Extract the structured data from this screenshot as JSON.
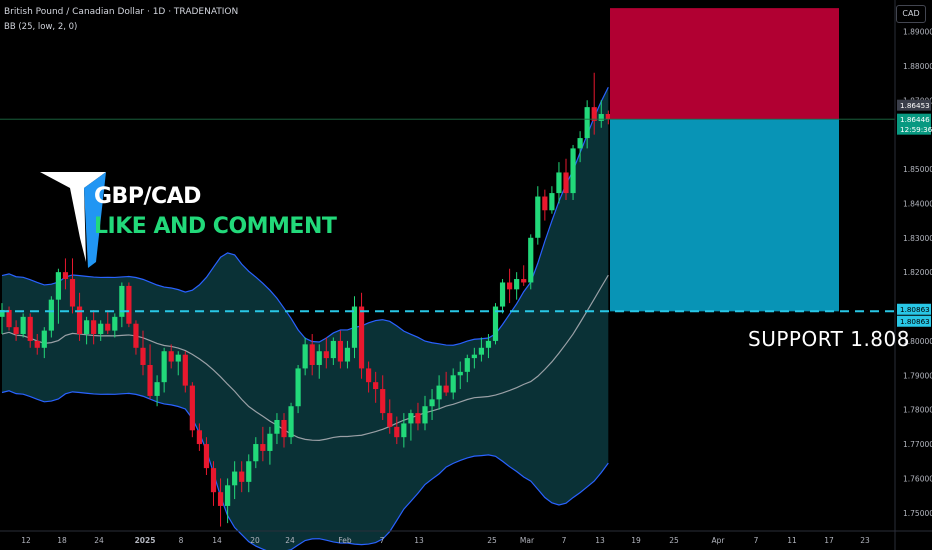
{
  "header": {
    "symbol_title": "British Pound / Canadian Dollar · 1D · TRADENATION",
    "indicator": "BB (25, low, 2, 0)",
    "currency_button": "CAD"
  },
  "annotations": {
    "headline_1": "GBP/CAD",
    "headline_2": "LIKE AND COMMENT",
    "support_label": "SUPPORT  1.808"
  },
  "price_tags": {
    "last_price": "1.86453",
    "bid_price": "1.86446",
    "countdown": "12:59:36",
    "support_upper": "1.80863",
    "support_lower": "1.80863"
  },
  "colors": {
    "up": "#089981",
    "down": "#f23645",
    "candle_up": "#22d97a",
    "candle_down": "#e8182e",
    "band_line": "#2962ff",
    "band_fill": "#0c3a40",
    "basis_line": "#9aa0a6",
    "stop_zone": "#b10032",
    "target_zone": "#0894b6",
    "support_line": "#29c7e6"
  },
  "chart_data": {
    "type": "candlestick",
    "y_axis": {
      "min": 1.745,
      "max": 1.898,
      "ticks": [
        "1.89000",
        "1.88000",
        "1.87000",
        "1.85000",
        "1.84000",
        "1.83000",
        "1.82000",
        "1.80000",
        "1.79000",
        "1.78000",
        "1.77000",
        "1.76000",
        "1.75000"
      ]
    },
    "x_axis_labels": [
      "12",
      "18",
      "24",
      "2025",
      "8",
      "14",
      "20",
      "24",
      "Feb",
      "7",
      "13",
      "25",
      "Mar",
      "7",
      "13",
      "19",
      "25",
      "Apr",
      "7",
      "11",
      "17",
      "23"
    ],
    "candles": [
      {
        "o": 1.807,
        "h": 1.811,
        "l": 1.802,
        "c": 1.809
      },
      {
        "o": 1.809,
        "h": 1.81,
        "l": 1.803,
        "c": 1.804
      },
      {
        "o": 1.804,
        "h": 1.806,
        "l": 1.8,
        "c": 1.802
      },
      {
        "o": 1.802,
        "h": 1.808,
        "l": 1.801,
        "c": 1.807
      },
      {
        "o": 1.807,
        "h": 1.808,
        "l": 1.798,
        "c": 1.8
      },
      {
        "o": 1.8,
        "h": 1.802,
        "l": 1.796,
        "c": 1.798
      },
      {
        "o": 1.798,
        "h": 1.804,
        "l": 1.795,
        "c": 1.803
      },
      {
        "o": 1.803,
        "h": 1.813,
        "l": 1.801,
        "c": 1.812
      },
      {
        "o": 1.812,
        "h": 1.821,
        "l": 1.805,
        "c": 1.82
      },
      {
        "o": 1.82,
        "h": 1.824,
        "l": 1.815,
        "c": 1.818
      },
      {
        "o": 1.818,
        "h": 1.824,
        "l": 1.808,
        "c": 1.81
      },
      {
        "o": 1.81,
        "h": 1.814,
        "l": 1.8,
        "c": 1.802
      },
      {
        "o": 1.802,
        "h": 1.807,
        "l": 1.799,
        "c": 1.806
      },
      {
        "o": 1.806,
        "h": 1.809,
        "l": 1.799,
        "c": 1.802
      },
      {
        "o": 1.802,
        "h": 1.806,
        "l": 1.8,
        "c": 1.805
      },
      {
        "o": 1.805,
        "h": 1.809,
        "l": 1.802,
        "c": 1.803
      },
      {
        "o": 1.803,
        "h": 1.808,
        "l": 1.801,
        "c": 1.807
      },
      {
        "o": 1.807,
        "h": 1.817,
        "l": 1.804,
        "c": 1.816
      },
      {
        "o": 1.816,
        "h": 1.817,
        "l": 1.804,
        "c": 1.805
      },
      {
        "o": 1.805,
        "h": 1.806,
        "l": 1.796,
        "c": 1.798
      },
      {
        "o": 1.798,
        "h": 1.803,
        "l": 1.79,
        "c": 1.793
      },
      {
        "o": 1.793,
        "h": 1.799,
        "l": 1.783,
        "c": 1.784
      },
      {
        "o": 1.784,
        "h": 1.79,
        "l": 1.781,
        "c": 1.788
      },
      {
        "o": 1.788,
        "h": 1.798,
        "l": 1.785,
        "c": 1.797
      },
      {
        "o": 1.797,
        "h": 1.799,
        "l": 1.792,
        "c": 1.794
      },
      {
        "o": 1.794,
        "h": 1.797,
        "l": 1.79,
        "c": 1.796
      },
      {
        "o": 1.796,
        "h": 1.797,
        "l": 1.785,
        "c": 1.787
      },
      {
        "o": 1.787,
        "h": 1.788,
        "l": 1.772,
        "c": 1.774
      },
      {
        "o": 1.774,
        "h": 1.776,
        "l": 1.768,
        "c": 1.77
      },
      {
        "o": 1.77,
        "h": 1.772,
        "l": 1.761,
        "c": 1.763
      },
      {
        "o": 1.763,
        "h": 1.765,
        "l": 1.752,
        "c": 1.756
      },
      {
        "o": 1.756,
        "h": 1.76,
        "l": 1.746,
        "c": 1.752
      },
      {
        "o": 1.752,
        "h": 1.76,
        "l": 1.747,
        "c": 1.758
      },
      {
        "o": 1.758,
        "h": 1.765,
        "l": 1.754,
        "c": 1.762
      },
      {
        "o": 1.762,
        "h": 1.765,
        "l": 1.756,
        "c": 1.759
      },
      {
        "o": 1.759,
        "h": 1.767,
        "l": 1.756,
        "c": 1.765
      },
      {
        "o": 1.765,
        "h": 1.772,
        "l": 1.763,
        "c": 1.77
      },
      {
        "o": 1.77,
        "h": 1.775,
        "l": 1.765,
        "c": 1.768
      },
      {
        "o": 1.768,
        "h": 1.775,
        "l": 1.764,
        "c": 1.773
      },
      {
        "o": 1.773,
        "h": 1.779,
        "l": 1.77,
        "c": 1.777
      },
      {
        "o": 1.777,
        "h": 1.779,
        "l": 1.769,
        "c": 1.772
      },
      {
        "o": 1.772,
        "h": 1.782,
        "l": 1.77,
        "c": 1.781
      },
      {
        "o": 1.781,
        "h": 1.793,
        "l": 1.779,
        "c": 1.792
      },
      {
        "o": 1.792,
        "h": 1.801,
        "l": 1.79,
        "c": 1.799
      },
      {
        "o": 1.799,
        "h": 1.802,
        "l": 1.79,
        "c": 1.793
      },
      {
        "o": 1.793,
        "h": 1.799,
        "l": 1.789,
        "c": 1.797
      },
      {
        "o": 1.797,
        "h": 1.801,
        "l": 1.792,
        "c": 1.795
      },
      {
        "o": 1.795,
        "h": 1.801,
        "l": 1.793,
        "c": 1.8
      },
      {
        "o": 1.8,
        "h": 1.803,
        "l": 1.792,
        "c": 1.794
      },
      {
        "o": 1.794,
        "h": 1.8,
        "l": 1.792,
        "c": 1.798
      },
      {
        "o": 1.798,
        "h": 1.813,
        "l": 1.795,
        "c": 1.81
      },
      {
        "o": 1.81,
        "h": 1.814,
        "l": 1.789,
        "c": 1.792
      },
      {
        "o": 1.792,
        "h": 1.794,
        "l": 1.785,
        "c": 1.788
      },
      {
        "o": 1.788,
        "h": 1.791,
        "l": 1.782,
        "c": 1.786
      },
      {
        "o": 1.786,
        "h": 1.79,
        "l": 1.777,
        "c": 1.779
      },
      {
        "o": 1.779,
        "h": 1.783,
        "l": 1.773,
        "c": 1.775
      },
      {
        "o": 1.775,
        "h": 1.778,
        "l": 1.77,
        "c": 1.772
      },
      {
        "o": 1.772,
        "h": 1.779,
        "l": 1.769,
        "c": 1.776
      },
      {
        "o": 1.776,
        "h": 1.78,
        "l": 1.771,
        "c": 1.779
      },
      {
        "o": 1.779,
        "h": 1.782,
        "l": 1.774,
        "c": 1.776
      },
      {
        "o": 1.776,
        "h": 1.784,
        "l": 1.774,
        "c": 1.781
      },
      {
        "o": 1.781,
        "h": 1.786,
        "l": 1.777,
        "c": 1.783
      },
      {
        "o": 1.783,
        "h": 1.79,
        "l": 1.78,
        "c": 1.787
      },
      {
        "o": 1.787,
        "h": 1.791,
        "l": 1.784,
        "c": 1.785
      },
      {
        "o": 1.785,
        "h": 1.792,
        "l": 1.783,
        "c": 1.79
      },
      {
        "o": 1.79,
        "h": 1.794,
        "l": 1.786,
        "c": 1.791
      },
      {
        "o": 1.791,
        "h": 1.796,
        "l": 1.788,
        "c": 1.795
      },
      {
        "o": 1.795,
        "h": 1.798,
        "l": 1.792,
        "c": 1.796
      },
      {
        "o": 1.796,
        "h": 1.801,
        "l": 1.794,
        "c": 1.798
      },
      {
        "o": 1.798,
        "h": 1.802,
        "l": 1.795,
        "c": 1.8
      },
      {
        "o": 1.8,
        "h": 1.811,
        "l": 1.799,
        "c": 1.81
      },
      {
        "o": 1.81,
        "h": 1.818,
        "l": 1.808,
        "c": 1.817
      },
      {
        "o": 1.817,
        "h": 1.821,
        "l": 1.811,
        "c": 1.815
      },
      {
        "o": 1.815,
        "h": 1.82,
        "l": 1.812,
        "c": 1.818
      },
      {
        "o": 1.818,
        "h": 1.822,
        "l": 1.816,
        "c": 1.817
      },
      {
        "o": 1.817,
        "h": 1.831,
        "l": 1.815,
        "c": 1.83
      },
      {
        "o": 1.83,
        "h": 1.845,
        "l": 1.828,
        "c": 1.842
      },
      {
        "o": 1.842,
        "h": 1.844,
        "l": 1.835,
        "c": 1.838
      },
      {
        "o": 1.838,
        "h": 1.845,
        "l": 1.837,
        "c": 1.843
      },
      {
        "o": 1.843,
        "h": 1.852,
        "l": 1.84,
        "c": 1.849
      },
      {
        "o": 1.849,
        "h": 1.853,
        "l": 1.841,
        "c": 1.843
      },
      {
        "o": 1.843,
        "h": 1.857,
        "l": 1.841,
        "c": 1.856
      },
      {
        "o": 1.856,
        "h": 1.861,
        "l": 1.852,
        "c": 1.859
      },
      {
        "o": 1.859,
        "h": 1.87,
        "l": 1.856,
        "c": 1.868
      },
      {
        "o": 1.868,
        "h": 1.878,
        "l": 1.86,
        "c": 1.864
      },
      {
        "o": 1.864,
        "h": 1.87,
        "l": 1.862,
        "c": 1.866
      },
      {
        "o": 1.866,
        "h": 1.867,
        "l": 1.863,
        "c": 1.8645
      }
    ],
    "position_tool": {
      "entry": 1.8645,
      "stop": 1.8968,
      "target": 1.8086
    },
    "support_level": 1.80863
  }
}
